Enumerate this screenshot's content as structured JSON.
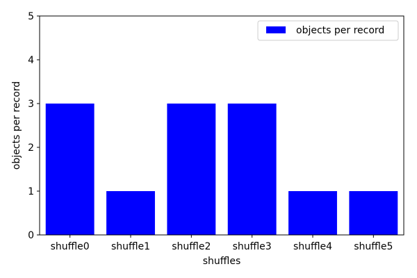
{
  "chart_data": {
    "type": "bar",
    "categories": [
      "shuffle0",
      "shuffle1",
      "shuffle2",
      "shuffle3",
      "shuffle4",
      "shuffle5"
    ],
    "series": [
      {
        "name": "objects per record",
        "values": [
          3,
          1,
          3,
          3,
          1,
          1
        ],
        "color": "#0000ff"
      }
    ],
    "title": "",
    "xlabel": "shuffles",
    "ylabel": "objects per record",
    "ylim": [
      0,
      5
    ],
    "yticks": [
      "0",
      "1",
      "2",
      "3",
      "4",
      "5"
    ],
    "grid": false,
    "legend_position": "top-right"
  }
}
